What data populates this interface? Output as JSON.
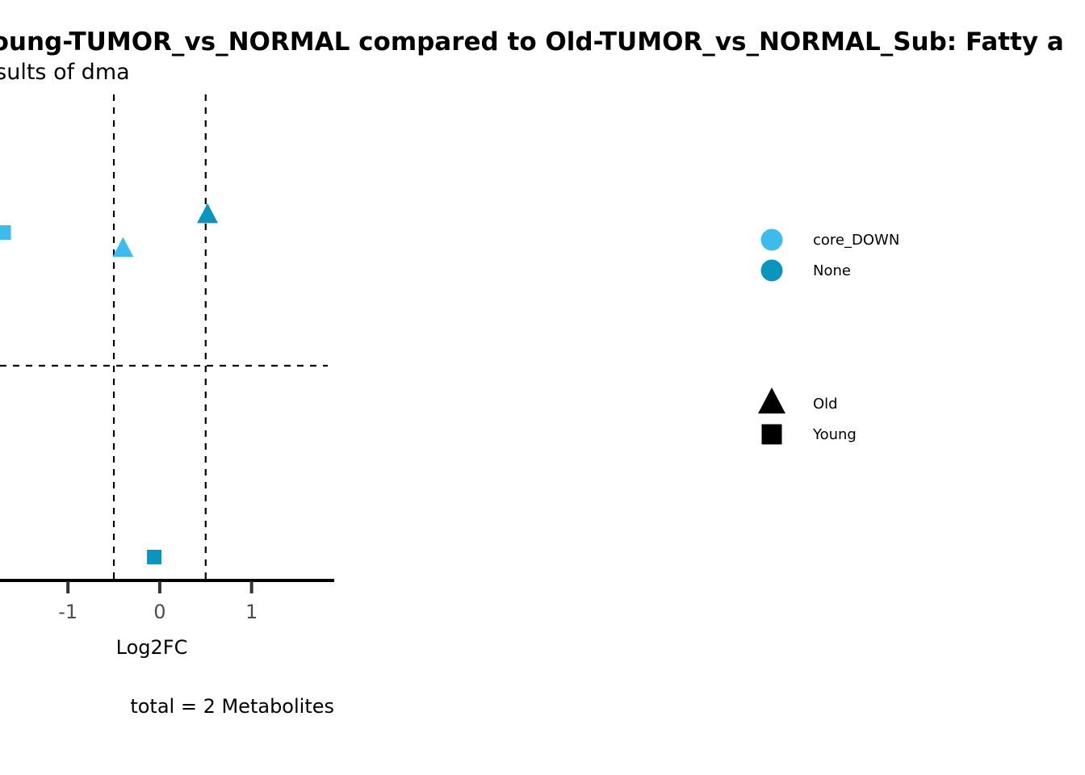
{
  "chart_data": {
    "type": "scatter",
    "title": "Young-TUMOR_vs_NORMAL compared to Old-TUMOR_vs_NORMAL_Sub: Fatty a",
    "subtitle": "Results of dma",
    "xlabel": "Log2FC",
    "ylabel": "",
    "caption": "total = 2 Metabolites",
    "x_ticks": [
      -1,
      0,
      1
    ],
    "xlim": [
      -1.74,
      1.9
    ],
    "ylim": [
      0,
      1
    ],
    "vlines": [
      -0.5,
      0.5
    ],
    "hline_y": 0.44,
    "grid": false,
    "legend_position": "right",
    "color_legend": [
      {
        "label": "core_DOWN",
        "color": "#3bbcec"
      },
      {
        "label": "None",
        "color": "#0a95bf"
      }
    ],
    "shape_legend": [
      {
        "label": "Old",
        "shape": "triangle"
      },
      {
        "label": "Young",
        "shape": "square"
      }
    ],
    "points": [
      {
        "x": -1.7,
        "y": 0.715,
        "group": "core_DOWN",
        "shape": "square"
      },
      {
        "x": -0.4,
        "y": 0.68,
        "group": "core_DOWN",
        "shape": "triangle"
      },
      {
        "x": 0.52,
        "y": 0.75,
        "group": "None",
        "shape": "triangle"
      },
      {
        "x": -0.06,
        "y": 0.045,
        "group": "None",
        "shape": "square"
      }
    ]
  }
}
